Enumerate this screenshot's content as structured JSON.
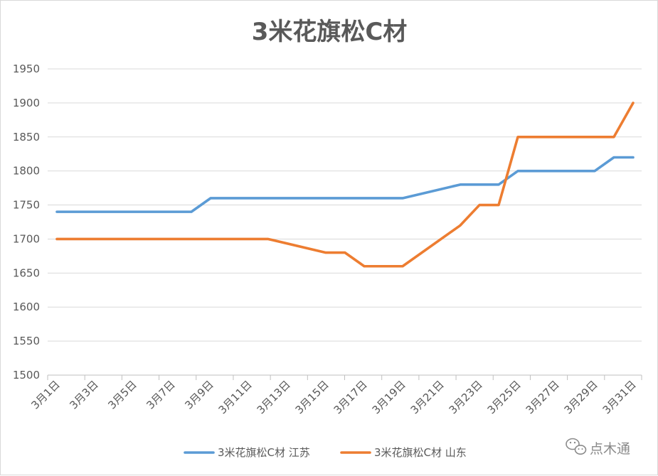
{
  "watermark": {
    "text": "点木通",
    "icon": "wechat-icon",
    "color": "#8a8a8a"
  },
  "chart_data": {
    "type": "line",
    "title": "3米花旗松C材",
    "xlabel": "",
    "ylabel": "",
    "ylim": [
      1500,
      1950
    ],
    "yticks": [
      1500,
      1550,
      1600,
      1650,
      1700,
      1750,
      1800,
      1850,
      1900,
      1950
    ],
    "grid": true,
    "legend_position": "bottom",
    "x": [
      1,
      31
    ],
    "xtick_labels": [
      "3月1日",
      "3月3日",
      "3月5日",
      "3月7日",
      "3月9日",
      "3月11日",
      "3月13日",
      "3月15日",
      "3月17日",
      "3月19日",
      "3月21日",
      "3月23日",
      "3月25日",
      "3月27日",
      "3月29日",
      "3月31日"
    ],
    "series": [
      {
        "name": "3米花旗松C材 江苏",
        "color": "#5b9bd5",
        "points": [
          [
            1,
            1740
          ],
          [
            8,
            1740
          ],
          [
            9,
            1760
          ],
          [
            19,
            1760
          ],
          [
            22,
            1780
          ],
          [
            24,
            1780
          ],
          [
            25,
            1800
          ],
          [
            29,
            1800
          ],
          [
            30,
            1820
          ],
          [
            31,
            1820
          ]
        ]
      },
      {
        "name": "3米花旗松C材 山东",
        "color": "#ed7d31",
        "points": [
          [
            1,
            1700
          ],
          [
            12,
            1700
          ],
          [
            15,
            1680
          ],
          [
            16,
            1680
          ],
          [
            17,
            1660
          ],
          [
            19,
            1660
          ],
          [
            22,
            1720
          ],
          [
            23,
            1750
          ],
          [
            24,
            1750
          ],
          [
            25,
            1850
          ],
          [
            30,
            1850
          ],
          [
            31,
            1900
          ]
        ]
      }
    ]
  }
}
